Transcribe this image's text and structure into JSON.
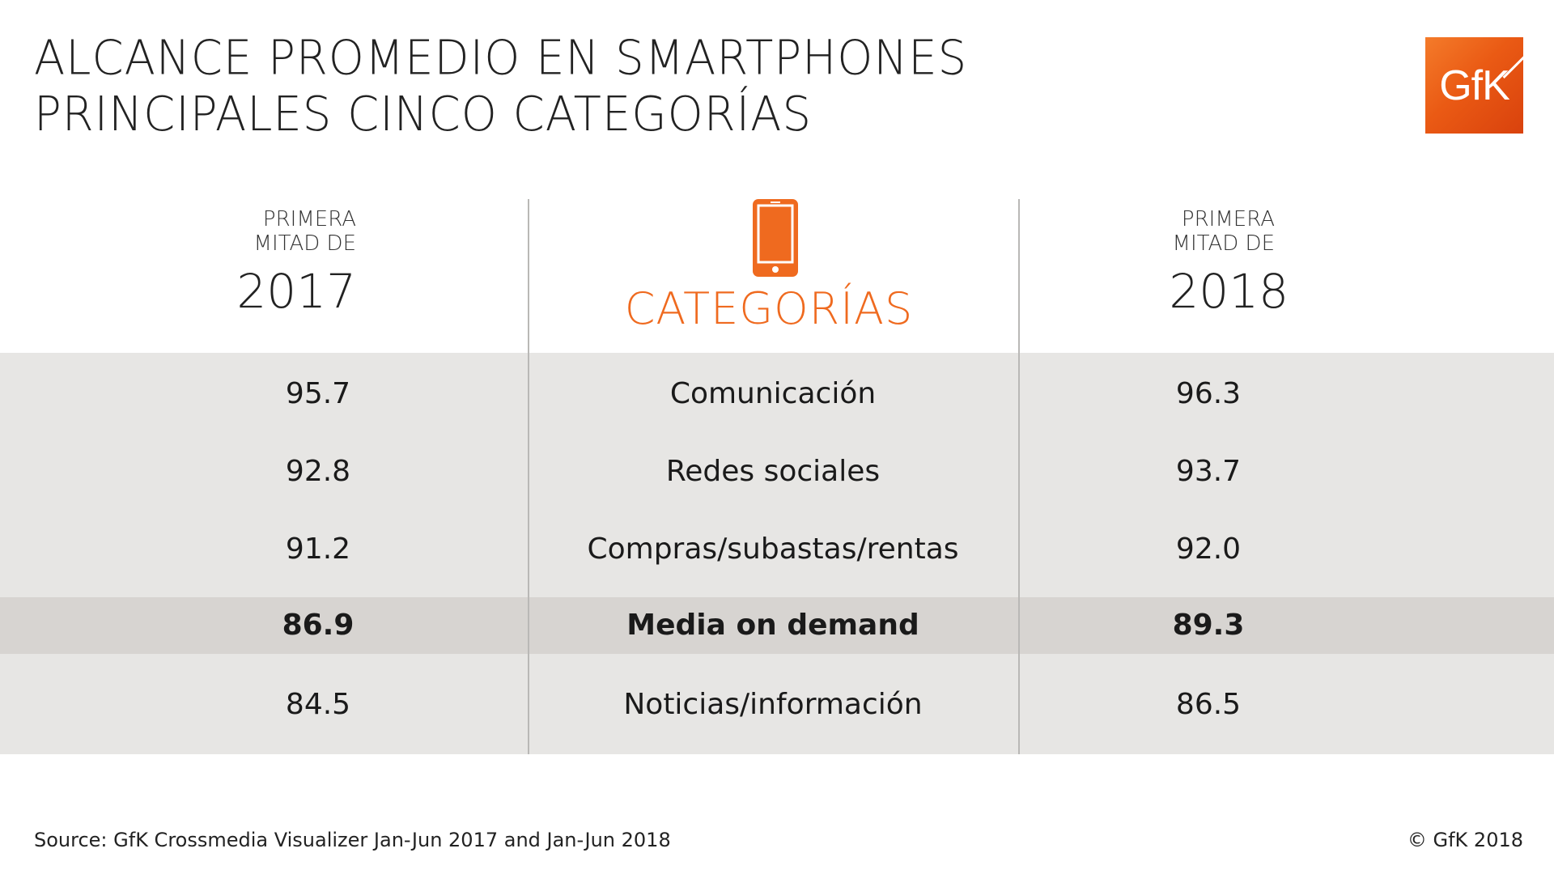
{
  "title": {
    "line1": "ALCANCE PROMEDIO EN SMARTPHONES",
    "line2": "PRINCIPALES CINCO CATEGORÍAS"
  },
  "logo": {
    "text": "GfK",
    "color": "#ea5a14"
  },
  "accent_color": "#ef6a1f",
  "columns": {
    "left": {
      "small_line1": "PRIMERA",
      "small_line2": "MITAD DE",
      "year": "2017"
    },
    "center": {
      "label": "CATEGORÍAS",
      "icon": "smartphone-icon"
    },
    "right": {
      "small_line1": "PRIMERA",
      "small_line2": "MITAD DE",
      "year": "2018"
    }
  },
  "chart_data": {
    "type": "table",
    "columns": [
      "2017",
      "CATEGORÍAS",
      "2018"
    ],
    "rows": [
      {
        "v2017": "95.7",
        "category": "Comunicación",
        "v2018": "96.3",
        "highlight": false
      },
      {
        "v2017": "92.8",
        "category": "Redes sociales",
        "v2018": "93.7",
        "highlight": false
      },
      {
        "v2017": "91.2",
        "category": "Compras/subastas/rentas",
        "v2018": "92.0",
        "highlight": false
      },
      {
        "v2017": "86.9",
        "category": "Media on demand",
        "v2018": "89.3",
        "highlight": true
      },
      {
        "v2017": "84.5",
        "category": "Noticias/información",
        "v2018": "86.5",
        "highlight": false
      }
    ]
  },
  "footer": {
    "source": "Source: GfK Crossmedia Visualizer Jan-Jun 2017 and Jan-Jun 2018",
    "copyright": "© GfK 2018"
  }
}
